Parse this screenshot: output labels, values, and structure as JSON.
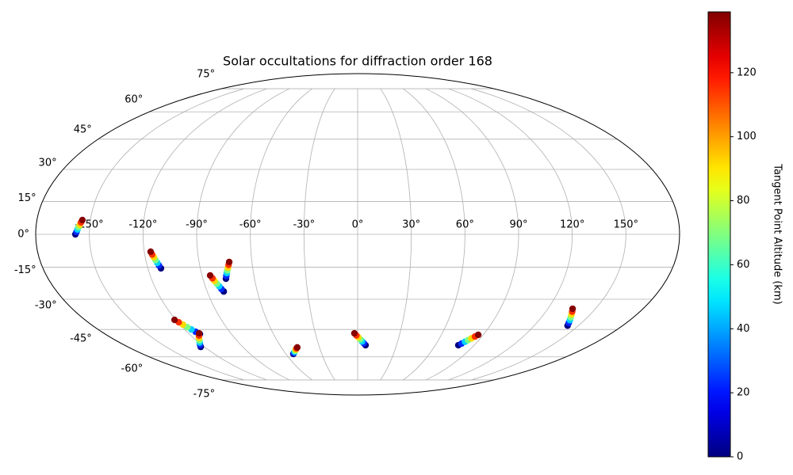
{
  "chart_data": {
    "type": "scatter",
    "projection": "mollweide",
    "title": "Solar occultations for diffraction order 168",
    "grid": true,
    "xlim": [
      -180,
      180
    ],
    "ylim": [
      -90,
      90
    ],
    "xticks": [
      {
        "value": -150,
        "label": "-150°"
      },
      {
        "value": -120,
        "label": "-120°"
      },
      {
        "value": -90,
        "label": "-90°"
      },
      {
        "value": -60,
        "label": "-60°"
      },
      {
        "value": -30,
        "label": "-30°"
      },
      {
        "value": 0,
        "label": "0°"
      },
      {
        "value": 30,
        "label": "30°"
      },
      {
        "value": 60,
        "label": "60°"
      },
      {
        "value": 90,
        "label": "90°"
      },
      {
        "value": 120,
        "label": "120°"
      },
      {
        "value": 150,
        "label": "150°"
      }
    ],
    "yticks": [
      {
        "value": -75,
        "label": "-75°"
      },
      {
        "value": -60,
        "label": "-60°"
      },
      {
        "value": -45,
        "label": "-45°"
      },
      {
        "value": -30,
        "label": "-30°"
      },
      {
        "value": -15,
        "label": "-15°"
      },
      {
        "value": 0,
        "label": "0°"
      },
      {
        "value": 15,
        "label": "15°"
      },
      {
        "value": 30,
        "label": "30°"
      },
      {
        "value": 45,
        "label": "45°"
      },
      {
        "value": 60,
        "label": "60°"
      },
      {
        "value": 75,
        "label": "75°"
      }
    ],
    "x": [
      -157.8,
      -157.2,
      -156.7,
      -156.2,
      -155.6,
      -155.1,
      -154.5,
      -112.5,
      -113.2,
      -113.8,
      -114.5,
      -115.1,
      -115.8,
      -116.4,
      -80.1,
      -81.0,
      -81.8,
      -82.7,
      -83.6,
      -84.4,
      -85.3,
      -76.6,
      -76.0,
      -75.4,
      -74.8,
      -74.1,
      -73.5,
      -72.9,
      -112.5,
      -113.9,
      -115.3,
      -116.7,
      -118.1,
      -119.5,
      -120.9,
      -122.9,
      -121.2,
      -119.4,
      -117.7,
      -116.0,
      -114.2,
      -112.5,
      -53.8,
      -52.8,
      -51.7,
      -50.7,
      -49.6,
      -48.6,
      -47.5,
      6.1,
      4.7,
      3.3,
      1.9,
      0.5,
      -0.9,
      -2.3,
      77.8,
      79.2,
      80.7,
      82.1,
      83.5,
      85.0,
      86.4,
      142.6,
      141.4,
      140.3,
      139.1,
      137.9,
      136.8,
      135.6
    ],
    "y": [
      0.0,
      1.1,
      2.2,
      3.3,
      4.3,
      5.4,
      6.5,
      -15.5,
      -14.2,
      -13.0,
      -11.7,
      -10.4,
      -9.2,
      -7.9,
      -26.3,
      -25.1,
      -23.8,
      -22.6,
      -21.3,
      -20.1,
      -18.8,
      -20.3,
      -19.0,
      -17.7,
      -16.5,
      -15.2,
      -13.9,
      -12.6,
      -47.4,
      -46.2,
      -45.0,
      -43.8,
      -42.5,
      -41.3,
      -40.1,
      -54.3,
      -53.1,
      -51.9,
      -50.7,
      -49.4,
      -48.2,
      -47.0,
      -58.3,
      -57.7,
      -57.1,
      -56.5,
      -55.8,
      -55.2,
      -54.6,
      -53.4,
      -52.3,
      -51.3,
      -50.2,
      -49.1,
      -48.1,
      -47.0,
      -53.4,
      -52.5,
      -51.5,
      -50.6,
      -49.7,
      -48.7,
      -47.8,
      -43.0,
      -41.6,
      -40.2,
      -38.8,
      -37.4,
      -36.0,
      -34.6
    ],
    "c": [
      0,
      23,
      46,
      69,
      92,
      115,
      138,
      0,
      23,
      46,
      69,
      92,
      115,
      138,
      0,
      23,
      46,
      69,
      92,
      115,
      138,
      0,
      23,
      46,
      69,
      92,
      115,
      138,
      0,
      23,
      46,
      69,
      92,
      115,
      138,
      0,
      23,
      46,
      69,
      92,
      115,
      138,
      0,
      23,
      46,
      69,
      92,
      115,
      138,
      0,
      23,
      46,
      69,
      92,
      115,
      138,
      0,
      23,
      46,
      69,
      92,
      115,
      138,
      0,
      23,
      46,
      69,
      92,
      115,
      138
    ],
    "colorbar": {
      "label": "Tangent Point Altitude (km)",
      "colormap": "jet",
      "lim": [
        0,
        139
      ],
      "ticks": [
        0,
        20,
        40,
        60,
        80,
        100,
        120
      ]
    }
  }
}
